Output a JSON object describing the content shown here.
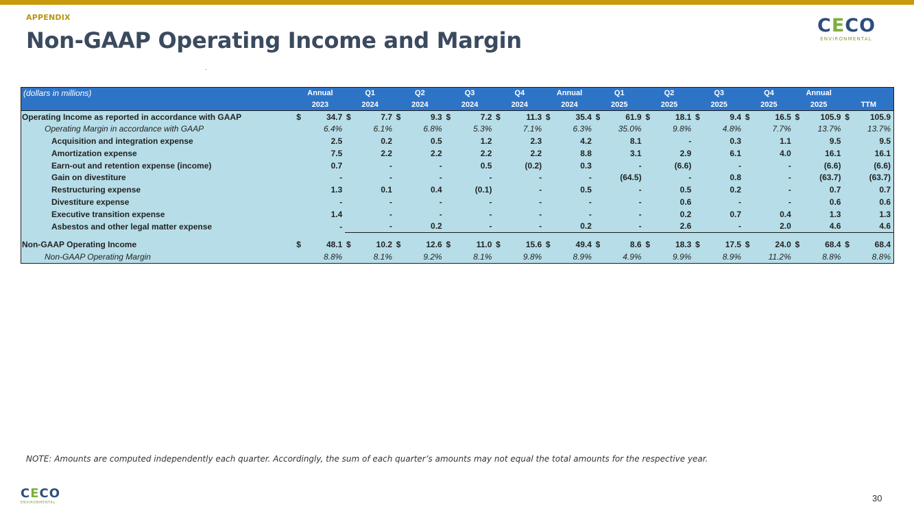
{
  "header": {
    "eyebrow": "APPENDIX",
    "title": "Non-GAAP Operating Income and Margin"
  },
  "logo": {
    "c1": "C",
    "e": "E",
    "c2": "C",
    "o": "O",
    "sub": "ENVIRONMENTAL"
  },
  "colors": {
    "accent_bar": "#C99A0C",
    "header_fill": "#2E74C6",
    "table_fill": "#B7DEE8",
    "title": "#3B4A5E"
  },
  "table": {
    "units_label": "(dollars in millions)",
    "columns": [
      {
        "period": "Annual",
        "year": "2023"
      },
      {
        "period": "Q1",
        "year": "2024"
      },
      {
        "period": "Q2",
        "year": "2024"
      },
      {
        "period": "Q3",
        "year": "2024"
      },
      {
        "period": "Q4",
        "year": "2024"
      },
      {
        "period": "Annual",
        "year": "2024"
      },
      {
        "period": "Q1",
        "year": "2025"
      },
      {
        "period": "Q2",
        "year": "2025"
      },
      {
        "period": "Q3",
        "year": "2025"
      },
      {
        "period": "Q4",
        "year": "2025"
      },
      {
        "period": "Annual",
        "year": "2025"
      },
      {
        "period": "",
        "year": "TTM"
      }
    ],
    "rows": [
      {
        "label": "Operating Income as reported in accordance with GAAP",
        "currency": "$",
        "values": [
          "34.7",
          "7.7",
          "9.3",
          "7.2",
          "11.3",
          "35.4",
          "61.9",
          "18.1",
          "9.4",
          "16.5",
          "105.9",
          "105.9"
        ]
      },
      {
        "label": "Operating Margin in accordance with GAAP",
        "values": [
          "6.4%",
          "6.1%",
          "6.8%",
          "5.3%",
          "7.1%",
          "6.3%",
          "35.0%",
          "9.8%",
          "4.8%",
          "7.7%",
          "13.7%",
          "13.7%"
        ]
      },
      {
        "label": "Acquisition and integration expense",
        "values": [
          "2.5",
          "0.2",
          "0.5",
          "1.2",
          "2.3",
          "4.2",
          "8.1",
          "-",
          "0.3",
          "1.1",
          "9.5",
          "9.5"
        ]
      },
      {
        "label": "Amortization expense",
        "values": [
          "7.5",
          "2.2",
          "2.2",
          "2.2",
          "2.2",
          "8.8",
          "3.1",
          "2.9",
          "6.1",
          "4.0",
          "16.1",
          "16.1"
        ]
      },
      {
        "label": "Earn-out and retention expense (income)",
        "values": [
          "0.7",
          "-",
          "-",
          "0.5",
          "(0.2)",
          "0.3",
          "-",
          "(6.6)",
          "-",
          "-",
          "(6.6)",
          "(6.6)"
        ]
      },
      {
        "label": "Gain on divestiture",
        "values": [
          "-",
          "-",
          "-",
          "-",
          "-",
          "-",
          "(64.5)",
          "-",
          "0.8",
          "-",
          "(63.7)",
          "(63.7)"
        ]
      },
      {
        "label": "Restructuring expense",
        "values": [
          "1.3",
          "0.1",
          "0.4",
          "(0.1)",
          "-",
          "0.5",
          "-",
          "0.5",
          "0.2",
          "-",
          "0.7",
          "0.7"
        ]
      },
      {
        "label": "Divestiture expense",
        "values": [
          "-",
          "-",
          "-",
          "-",
          "-",
          "-",
          "-",
          "0.6",
          "-",
          "-",
          "0.6",
          "0.6"
        ]
      },
      {
        "label": "Executive transition expense",
        "values": [
          "1.4",
          "-",
          "-",
          "-",
          "-",
          "-",
          "-",
          "0.2",
          "0.7",
          "0.4",
          "1.3",
          "1.3"
        ]
      },
      {
        "label": "Asbestos and other legal matter expense",
        "values": [
          "-",
          "-",
          "0.2",
          "-",
          "-",
          "0.2",
          "-",
          "2.6",
          "-",
          "2.0",
          "4.6",
          "4.6"
        ]
      },
      {
        "label": "Non-GAAP Operating Income",
        "currency": "$",
        "values": [
          "48.1",
          "10.2",
          "12.6",
          "11.0",
          "15.6",
          "49.4",
          "8.6",
          "18.3",
          "17.5",
          "24.0",
          "68.4",
          "68.4"
        ]
      },
      {
        "label": "Non-GAAP Operating Margin",
        "values": [
          "8.8%",
          "8.1%",
          "9.2%",
          "8.1%",
          "9.8%",
          "8.9%",
          "4.9%",
          "9.9%",
          "8.9%",
          "11.2%",
          "8.8%",
          "8.8%"
        ]
      }
    ]
  },
  "footer": {
    "note": "NOTE: Amounts are computed independently each quarter. Accordingly, the sum of each quarter’s amounts may not equal the total amounts for the respective year.",
    "page_number": "30"
  }
}
